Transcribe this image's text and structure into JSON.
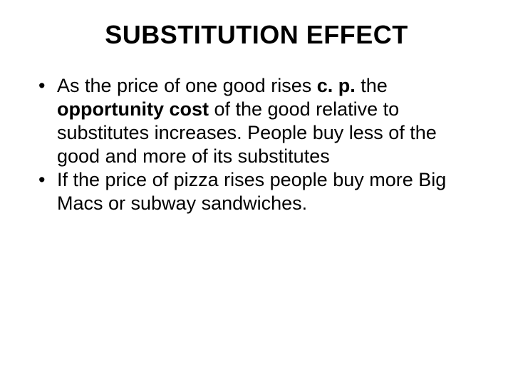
{
  "slide": {
    "title": "SUBSTITUTION EFFECT",
    "bullets": [
      {
        "segments": [
          {
            "text": "As the price of one good rises ",
            "bold": false
          },
          {
            "text": "c. p.",
            "bold": true
          },
          {
            "text": " the ",
            "bold": false
          },
          {
            "text": "opportunity cost",
            "bold": true
          },
          {
            "text": " of the good relative to substitutes increases. People buy less of the good and more of its substitutes",
            "bold": false
          }
        ]
      },
      {
        "segments": [
          {
            "text": "If the price of pizza rises people buy more Big Macs or subway sandwiches.",
            "bold": false
          }
        ]
      }
    ]
  },
  "style": {
    "background_color": "#ffffff",
    "text_color": "#000000",
    "title_fontsize": 36,
    "title_fontweight": 700,
    "body_fontsize": 27,
    "line_height": 1.22,
    "font_family": "Arial, Helvetica, sans-serif",
    "slide_width": 720,
    "slide_height": 540
  }
}
